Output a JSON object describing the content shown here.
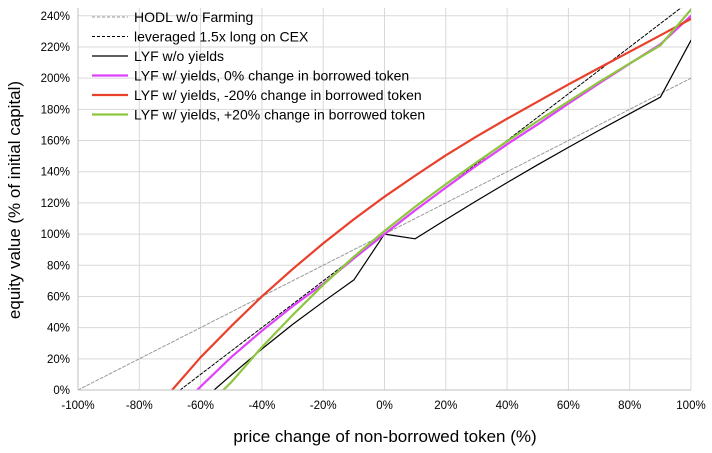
{
  "chart_data": {
    "type": "line",
    "title": "",
    "xlabel": "price change of non-borrowed token (%)",
    "ylabel": "equity value (% of initial capital)",
    "xlim": [
      -100,
      100
    ],
    "ylim": [
      0,
      245
    ],
    "x_ticks": [
      -100,
      -80,
      -60,
      -40,
      -20,
      0,
      20,
      40,
      60,
      80,
      100
    ],
    "y_ticks": [
      0,
      20,
      40,
      60,
      80,
      100,
      120,
      140,
      160,
      180,
      200,
      220,
      240
    ],
    "x_tick_labels": [
      "-100%",
      "-80%",
      "-60%",
      "-40%",
      "-20%",
      "0%",
      "20%",
      "40%",
      "60%",
      "80%",
      "100%"
    ],
    "y_tick_labels": [
      "0%",
      "20%",
      "40%",
      "60%",
      "80%",
      "100%",
      "120%",
      "140%",
      "160%",
      "180%",
      "200%",
      "220%",
      "240%"
    ],
    "grid": "both",
    "legend_position": "top-left",
    "series": [
      {
        "name": "HODL w/o Farming",
        "color": "#999999",
        "dash": "dashed",
        "x": [
          -100,
          -80,
          -60,
          -40,
          -20,
          0,
          20,
          40,
          60,
          80,
          100
        ],
        "y": [
          0,
          20,
          40,
          60,
          80,
          100,
          120,
          140,
          160,
          180,
          200
        ]
      },
      {
        "name": "leveraged 1.5x long on CEX",
        "color": "#000000",
        "dash": "dashed",
        "x": [
          -66.7,
          -60,
          -40,
          -20,
          0,
          20,
          40,
          60,
          80,
          100
        ],
        "y": [
          0,
          10,
          40,
          70,
          100,
          130,
          160,
          190,
          220,
          250
        ]
      },
      {
        "name": "LYF w/o yields",
        "color": "#000000",
        "dash": "solid",
        "x": [
          -55.6,
          -50,
          -40,
          -30,
          -20,
          -10,
          0,
          10,
          20,
          30,
          40,
          50,
          60,
          70,
          80,
          90,
          100
        ],
        "y": [
          0,
          9.6,
          26.3,
          42.0,
          56.6,
          70.6,
          100.0,
          97.0,
          109.3,
          121.3,
          133.0,
          144.5,
          155.6,
          166.5,
          177.2,
          187.8,
          224.3
        ]
      },
      {
        "name": "LYF w/ yields, 0% change in borrowed token",
        "color": "#e040fb",
        "dash": "solid",
        "x": [
          -61.1,
          -60,
          -50,
          -40,
          -30,
          -20,
          -10,
          0,
          10,
          20,
          30,
          40,
          50,
          60,
          70,
          80,
          90,
          100
        ],
        "y": [
          0,
          2.2,
          21.1,
          38.0,
          53.6,
          68.1,
          84.4,
          100.0,
          115.3,
          129.8,
          143.9,
          157.6,
          170.4,
          183.7,
          196.6,
          209.3,
          221.7,
          240.0
        ]
      },
      {
        "name": "LYF w/ yields, -20% change in borrowed token",
        "color": "#e8402b",
        "dash": "solid",
        "x": [
          -69.3,
          -60,
          -50,
          -40,
          -30,
          -20,
          -10,
          0,
          10,
          20,
          30,
          40,
          50,
          60,
          70,
          80,
          90,
          100
        ],
        "y": [
          0,
          21.0,
          41.0,
          60.0,
          77.5,
          94.0,
          109.5,
          124.0,
          137.5,
          150.5,
          162.5,
          174.0,
          185.0,
          196.0,
          206.5,
          217.0,
          227.5,
          238.0
        ]
      },
      {
        "name": "LYF w/ yields, +20% change in borrowed token",
        "color": "#8dc63f",
        "dash": "solid",
        "x": [
          -52.6,
          -50,
          -40,
          -30,
          -20,
          -10,
          0,
          10,
          20,
          30,
          40,
          50,
          60,
          70,
          80,
          90,
          100
        ],
        "y": [
          0,
          5.0,
          27.5,
          48.0,
          67.5,
          85.5,
          102.0,
          117.5,
          132.0,
          146.0,
          159.5,
          172.5,
          185.0,
          197.5,
          209.5,
          221.0,
          244.0
        ]
      }
    ]
  }
}
